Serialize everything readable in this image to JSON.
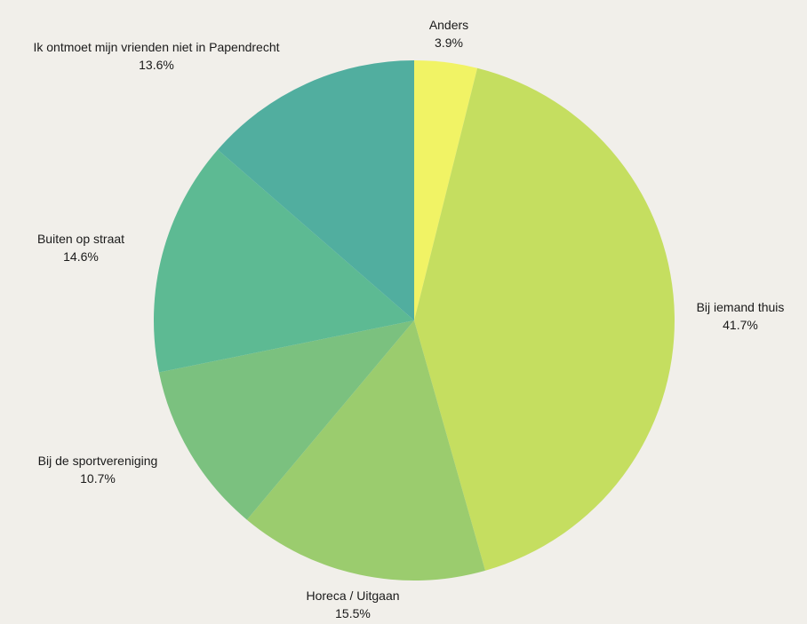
{
  "chart_data": {
    "type": "pie",
    "slices": [
      {
        "label": "Anders",
        "value": 3.9,
        "display": "3.9%",
        "color": "#f1f365"
      },
      {
        "label": "Bij iemand thuis",
        "value": 41.7,
        "display": "41.7%",
        "color": "#c5de60"
      },
      {
        "label": "Horeca / Uitgaan",
        "value": 15.5,
        "display": "15.5%",
        "color": "#9bcc6e"
      },
      {
        "label": "Bij de sportvereniging",
        "value": 10.7,
        "display": "10.7%",
        "color": "#7bc17f"
      },
      {
        "label": "Buiten op straat",
        "value": 14.6,
        "display": "14.6%",
        "color": "#5dba93"
      },
      {
        "label": "Ik ontmoet mijn vrienden niet in Papendrecht",
        "value": 13.6,
        "display": "13.6%",
        "color": "#51ae9f"
      }
    ],
    "start_angle": "top",
    "direction": "clockwise",
    "labels": "outside"
  }
}
